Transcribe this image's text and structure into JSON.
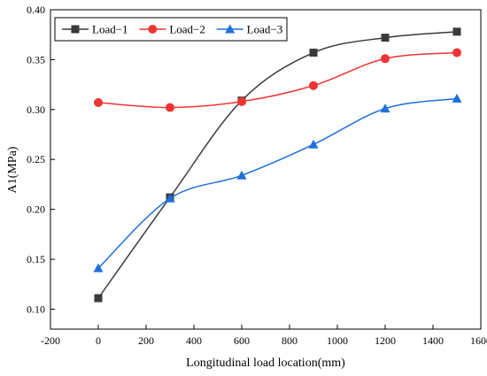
{
  "chart_data": {
    "type": "line",
    "xlabel": "Longitudinal load location(mm)",
    "ylabel": "A1(MPa)",
    "xlim": [
      -200,
      1600
    ],
    "ylim": [
      0.08,
      0.4
    ],
    "xticks": [
      -200,
      0,
      200,
      400,
      600,
      800,
      1000,
      1200,
      1400,
      1600
    ],
    "yticks": [
      0.1,
      0.15,
      0.2,
      0.25,
      0.3,
      0.35,
      0.4
    ],
    "grid": false,
    "legend_position": "top-left",
    "x": [
      0,
      300,
      600,
      900,
      1200,
      1500
    ],
    "series": [
      {
        "name": "Load−1",
        "values": [
          0.111,
          0.212,
          0.309,
          0.357,
          0.372,
          0.378
        ],
        "color": "#3a3a3a",
        "marker": "square"
      },
      {
        "name": "Load−2",
        "values": [
          0.307,
          0.302,
          0.308,
          0.324,
          0.351,
          0.357
        ],
        "color": "#ee3333",
        "marker": "circle"
      },
      {
        "name": "Load−3",
        "values": [
          0.141,
          0.211,
          0.234,
          0.265,
          0.301,
          0.311
        ],
        "color": "#1f6fdc",
        "marker": "triangle"
      }
    ]
  }
}
